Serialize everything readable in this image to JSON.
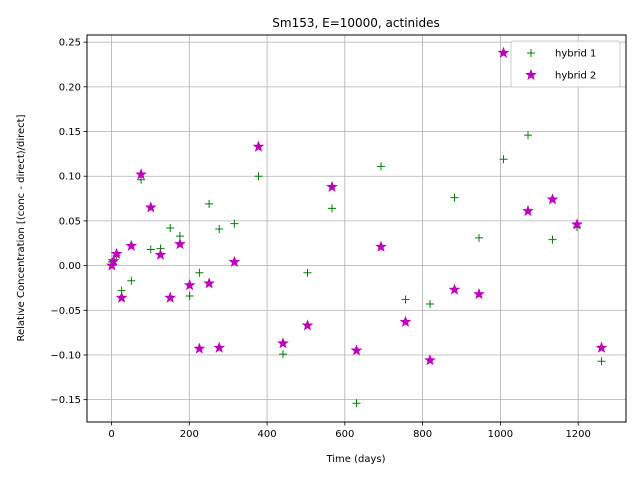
{
  "chart_data": {
    "type": "scatter",
    "title": "Sm153, E=10000, actinides",
    "xlabel": "Time (days)",
    "ylabel": "Relative Concentration [(conc - direct)/direct]",
    "xlim": [
      -63,
      1323
    ],
    "ylim": [
      -0.175,
      0.258
    ],
    "xticks": [
      0,
      200,
      400,
      600,
      800,
      1000,
      1200
    ],
    "yticks": [
      -0.15,
      -0.1,
      -0.05,
      0.0,
      0.05,
      0.1,
      0.15,
      0.2,
      0.25
    ],
    "ytick_labels": [
      "−0.15",
      "−0.10",
      "−0.05",
      "0.00",
      "0.05",
      "0.10",
      "0.15",
      "0.20",
      "0.25"
    ],
    "grid": true,
    "legend_position": "top-right",
    "series": [
      {
        "name": "hybrid 1",
        "marker": "plus",
        "color": "#008000",
        "x": [
          1,
          5,
          13,
          26,
          51,
          76,
          101,
          126,
          151,
          176,
          201,
          226,
          251,
          277,
          316,
          378,
          441,
          504,
          567,
          630,
          693,
          756,
          819,
          882,
          945,
          1008,
          1071,
          1134,
          1197,
          1260
        ],
        "y": [
          0.004,
          0.005,
          0.011,
          -0.028,
          -0.017,
          0.096,
          0.018,
          0.019,
          0.042,
          0.033,
          -0.034,
          -0.008,
          0.069,
          0.041,
          0.047,
          0.1,
          -0.099,
          -0.008,
          0.064,
          -0.154,
          0.111,
          -0.038,
          -0.043,
          0.076,
          0.031,
          0.119,
          0.146,
          0.029,
          0.043,
          -0.107
        ]
      },
      {
        "name": "hybrid 2",
        "marker": "star",
        "color": "#bf00bf",
        "x": [
          1,
          5,
          13,
          26,
          51,
          76,
          101,
          126,
          151,
          176,
          201,
          226,
          251,
          277,
          316,
          378,
          441,
          504,
          567,
          630,
          693,
          756,
          819,
          882,
          945,
          1008,
          1071,
          1134,
          1197,
          1260
        ],
        "y": [
          0.0,
          0.005,
          0.013,
          -0.036,
          0.022,
          0.102,
          0.065,
          0.012,
          -0.036,
          0.024,
          -0.022,
          -0.093,
          -0.02,
          -0.092,
          0.004,
          0.133,
          -0.087,
          -0.067,
          0.088,
          -0.095,
          0.021,
          -0.063,
          -0.106,
          -0.027,
          -0.032,
          0.238,
          0.061,
          0.074,
          0.046,
          -0.092
        ]
      }
    ]
  }
}
